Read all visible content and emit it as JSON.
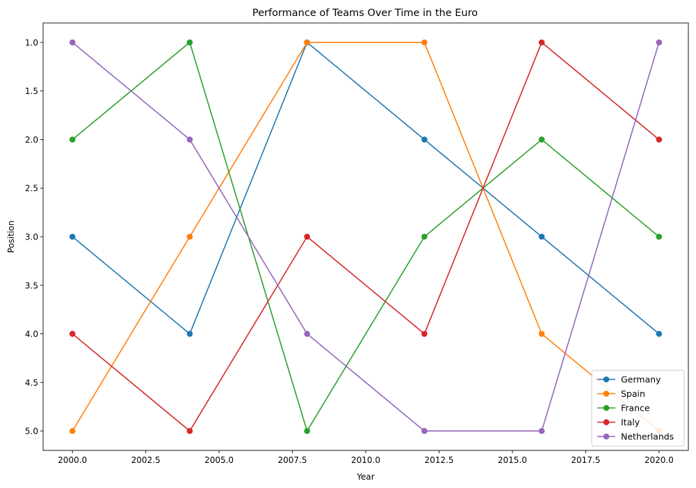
{
  "chart_data": {
    "type": "line",
    "title": "Performance of Teams Over Time in the Euro",
    "xlabel": "Year",
    "ylabel": "Position",
    "x": [
      2000,
      2004,
      2008,
      2012,
      2016,
      2020
    ],
    "xlim": [
      1999,
      2021
    ],
    "ylim": [
      5.2,
      0.8
    ],
    "y_inverted": true,
    "xticks": [
      2000.0,
      2002.5,
      2005.0,
      2007.5,
      2010.0,
      2012.5,
      2015.0,
      2017.5,
      2020.0
    ],
    "xtick_labels": [
      "2000.0",
      "2002.5",
      "2005.0",
      "2007.5",
      "2010.0",
      "2012.5",
      "2015.0",
      "2017.5",
      "2020.0"
    ],
    "yticks": [
      1.0,
      1.5,
      2.0,
      2.5,
      3.0,
      3.5,
      4.0,
      4.5,
      5.0
    ],
    "ytick_labels": [
      "1.0",
      "1.5",
      "2.0",
      "2.5",
      "3.0",
      "3.5",
      "4.0",
      "4.5",
      "5.0"
    ],
    "grid": false,
    "legend_position": "lower-right",
    "series": [
      {
        "name": "Germany",
        "color": "#1f77b4",
        "values": [
          3,
          4,
          1,
          2,
          3,
          4
        ]
      },
      {
        "name": "Spain",
        "color": "#ff7f0e",
        "values": [
          5,
          3,
          1,
          1,
          4,
          5
        ]
      },
      {
        "name": "France",
        "color": "#2ca02c",
        "values": [
          2,
          1,
          5,
          3,
          2,
          3
        ]
      },
      {
        "name": "Italy",
        "color": "#d62728",
        "values": [
          4,
          5,
          3,
          4,
          1,
          2
        ]
      },
      {
        "name": "Netherlands",
        "color": "#9467bd",
        "values": [
          1,
          2,
          4,
          5,
          5,
          1
        ]
      }
    ]
  }
}
